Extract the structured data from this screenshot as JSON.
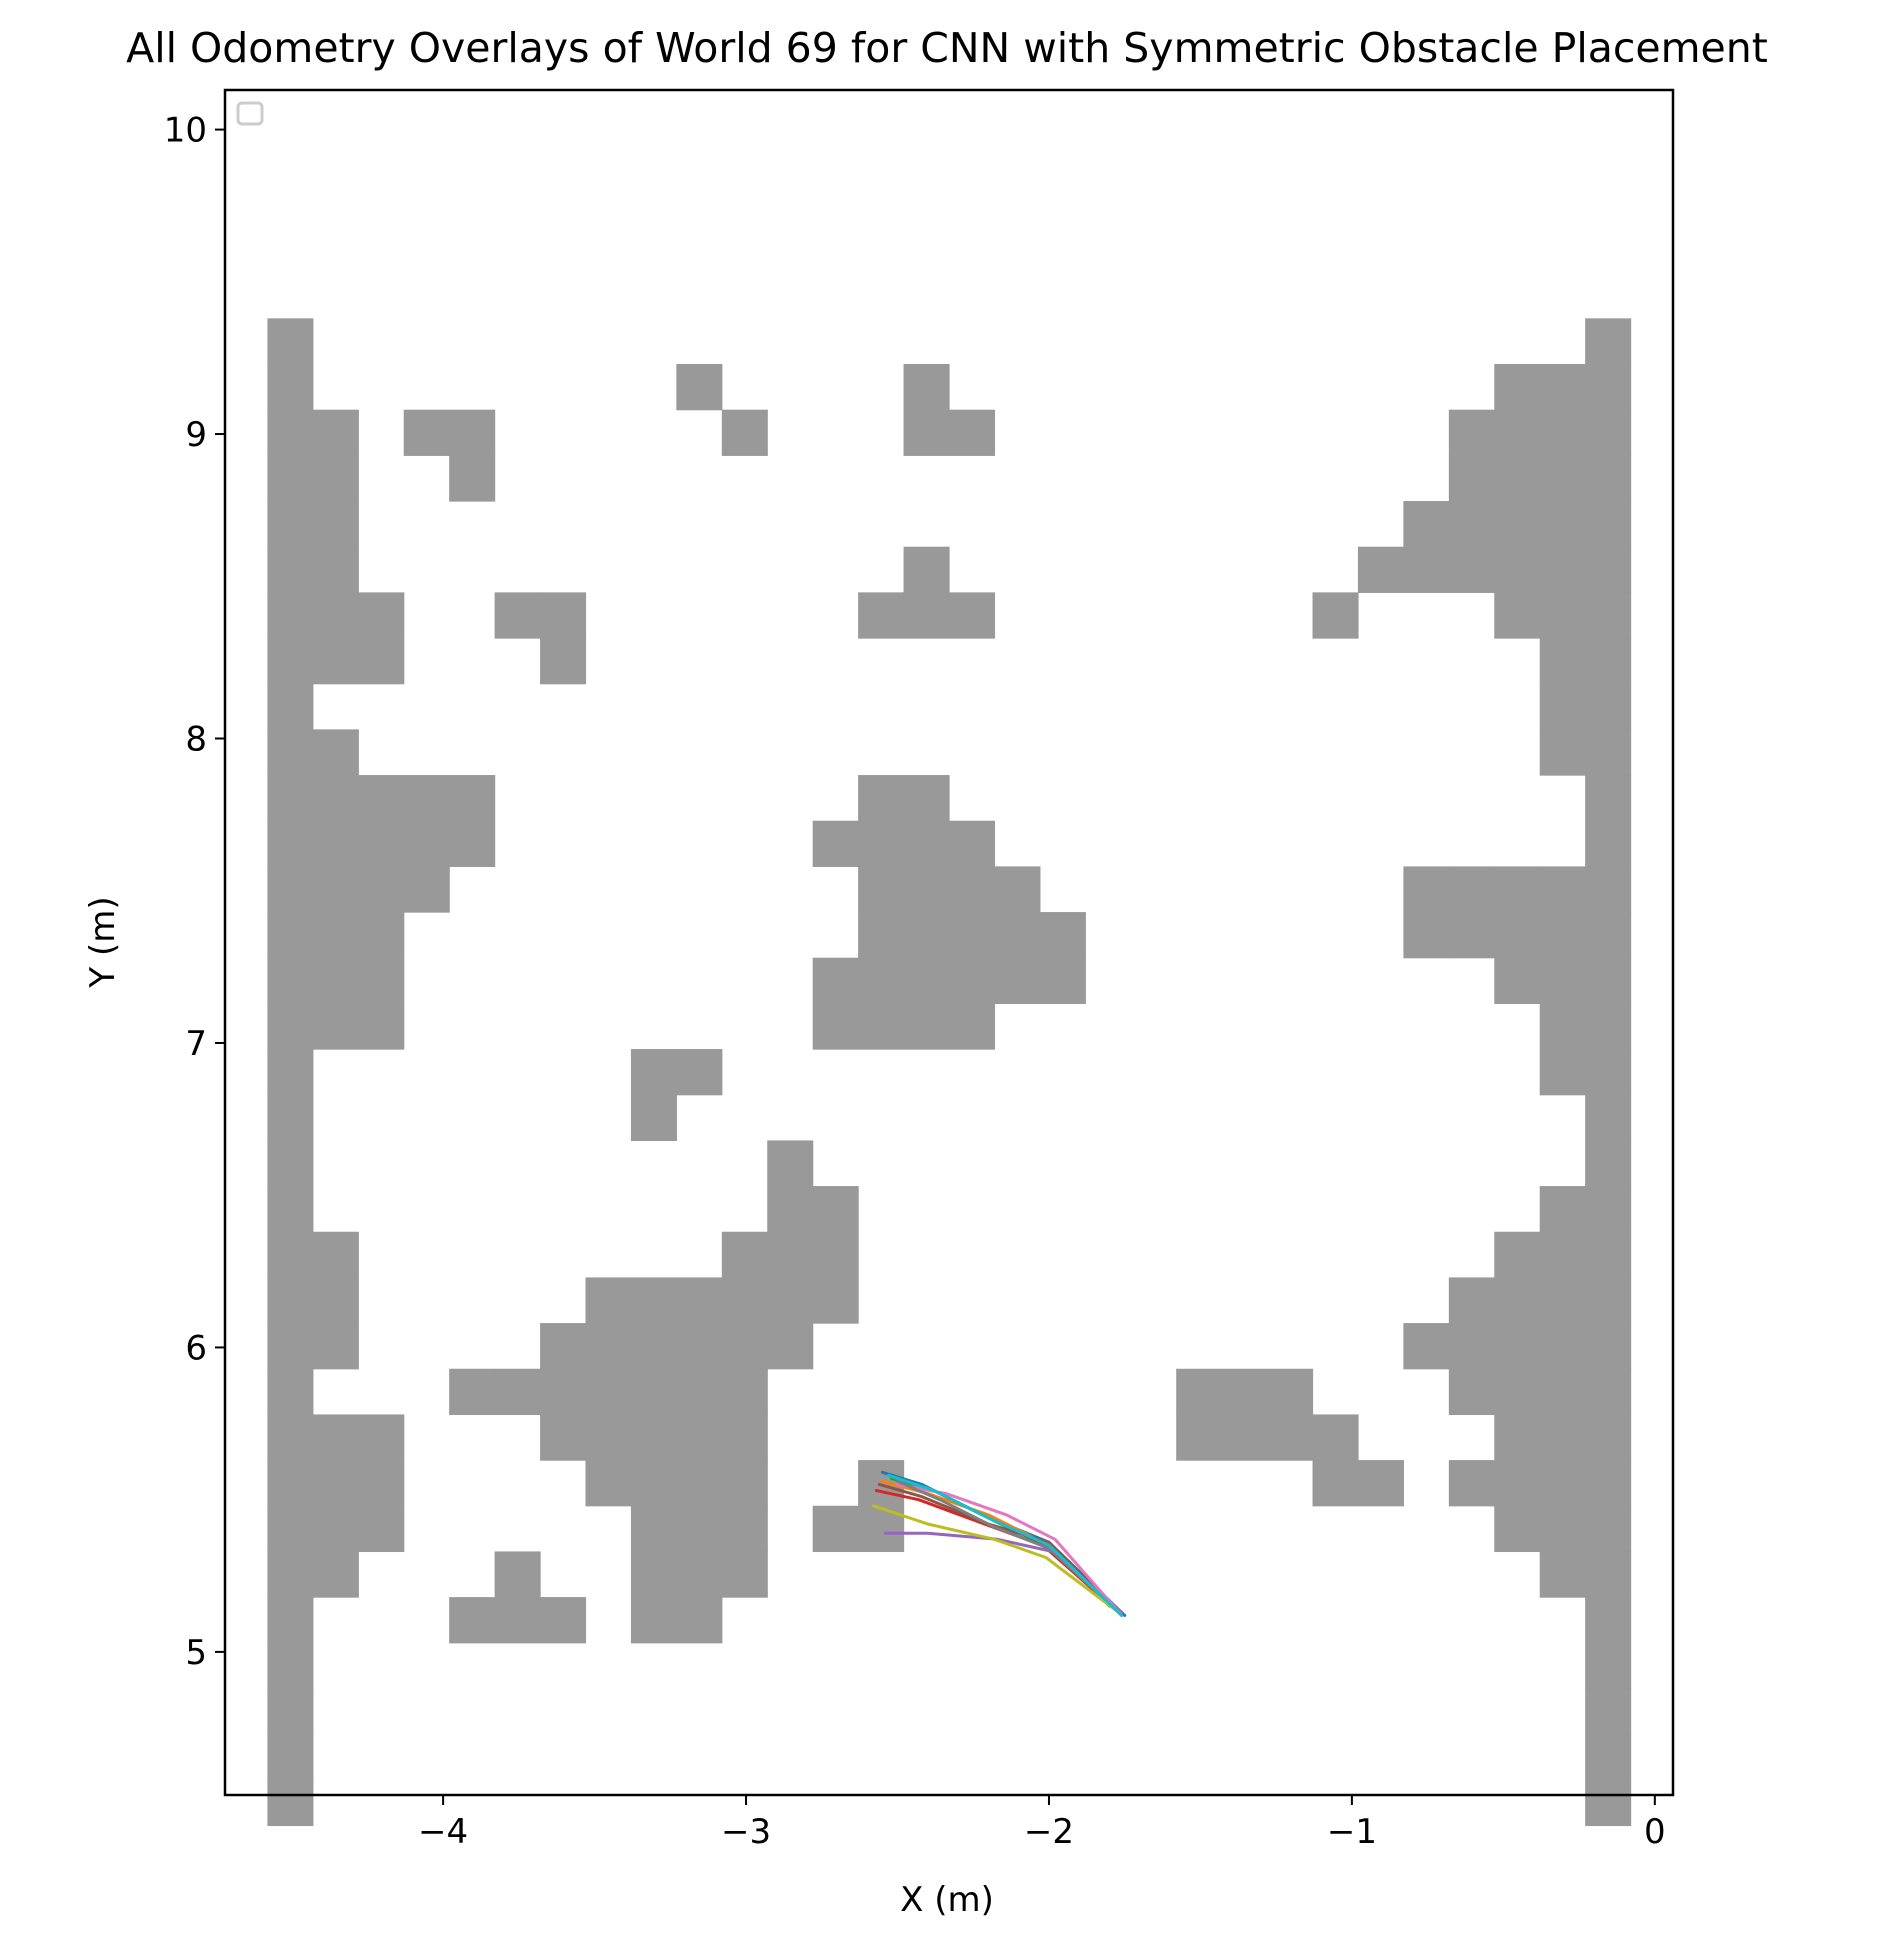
{
  "chart_data": {
    "type": "line",
    "title": "All Odometry Overlays of World 69 for CNN with Symmetric Obstacle Placement",
    "xlabel": "X (m)",
    "ylabel": "Y (m)",
    "xlim": [
      -4.72,
      0.06
    ],
    "ylim": [
      4.53,
      10.13
    ],
    "xticks": [
      -4,
      -3,
      -2,
      -1,
      0
    ],
    "xtick_labels": [
      "−4",
      "−3",
      "−2",
      "−1",
      "0"
    ],
    "yticks": [
      5,
      6,
      7,
      8,
      9,
      10
    ],
    "ytick_labels": [
      "5",
      "6",
      "7",
      "8",
      "9",
      "10"
    ],
    "grid": false,
    "legend": {
      "placement": "top-left",
      "entries": []
    },
    "obstacle_color": "#999999",
    "obstacle_grid": {
      "x0": -4.58,
      "y0": 4.53,
      "cell": 0.15,
      "rows_from_top": [
        {
          "y_top": 9.38,
          "cols": [
            0,
            29
          ]
        },
        {
          "y_top": 9.23,
          "cols": [
            0,
            9,
            14,
            27,
            28,
            29
          ]
        },
        {
          "y_top": 9.08,
          "cols": [
            0,
            1,
            3,
            4,
            10,
            14,
            15,
            26,
            27,
            28,
            29
          ]
        },
        {
          "y_top": 8.93,
          "cols": [
            0,
            1,
            4,
            26,
            27,
            28,
            29
          ]
        },
        {
          "y_top": 8.78,
          "cols": [
            0,
            1,
            25,
            26,
            27,
            28,
            29
          ]
        },
        {
          "y_top": 8.63,
          "cols": [
            0,
            1,
            14,
            24,
            25,
            26,
            27,
            28,
            29
          ]
        },
        {
          "y_top": 8.48,
          "cols": [
            0,
            1,
            2,
            5,
            6,
            13,
            14,
            15,
            23,
            27,
            28,
            29
          ]
        },
        {
          "y_top": 8.33,
          "cols": [
            0,
            1,
            2,
            6,
            28,
            29
          ]
        },
        {
          "y_top": 8.18,
          "cols": [
            0,
            28,
            29
          ]
        },
        {
          "y_top": 8.03,
          "cols": [
            0,
            1,
            28,
            29
          ]
        },
        {
          "y_top": 7.88,
          "cols": [
            0,
            1,
            2,
            3,
            4,
            13,
            14,
            29
          ]
        },
        {
          "y_top": 7.73,
          "cols": [
            0,
            1,
            2,
            3,
            4,
            12,
            13,
            14,
            15,
            29
          ]
        },
        {
          "y_top": 7.58,
          "cols": [
            0,
            1,
            2,
            3,
            13,
            14,
            15,
            16,
            25,
            26,
            27,
            28,
            29
          ]
        },
        {
          "y_top": 7.43,
          "cols": [
            0,
            1,
            2,
            13,
            14,
            15,
            16,
            17,
            25,
            26,
            27,
            28,
            29
          ]
        },
        {
          "y_top": 7.28,
          "cols": [
            0,
            1,
            2,
            12,
            13,
            14,
            15,
            16,
            17,
            27,
            28,
            29
          ]
        },
        {
          "y_top": 7.13,
          "cols": [
            0,
            1,
            2,
            12,
            13,
            14,
            15,
            28,
            29
          ]
        },
        {
          "y_top": 6.98,
          "cols": [
            0,
            8,
            9,
            28,
            29
          ]
        },
        {
          "y_top": 6.83,
          "cols": [
            0,
            8,
            29
          ]
        },
        {
          "y_top": 6.68,
          "cols": [
            0,
            11,
            29
          ]
        },
        {
          "y_top": 6.53,
          "cols": [
            0,
            11,
            12,
            28,
            29
          ]
        },
        {
          "y_top": 6.38,
          "cols": [
            0,
            1,
            10,
            11,
            12,
            27,
            28,
            29
          ]
        },
        {
          "y_top": 6.23,
          "cols": [
            0,
            1,
            7,
            8,
            9,
            10,
            11,
            12,
            26,
            27,
            28,
            29
          ]
        },
        {
          "y_top": 6.08,
          "cols": [
            0,
            1,
            6,
            7,
            8,
            9,
            10,
            11,
            25,
            26,
            27,
            28,
            29
          ]
        },
        {
          "y_top": 5.93,
          "cols": [
            0,
            4,
            5,
            6,
            7,
            8,
            9,
            10,
            20,
            21,
            22,
            26,
            27,
            28,
            29
          ]
        },
        {
          "y_top": 5.78,
          "cols": [
            0,
            1,
            2,
            6,
            7,
            8,
            9,
            10,
            20,
            21,
            22,
            23,
            27,
            28,
            29
          ]
        },
        {
          "y_top": 5.63,
          "cols": [
            0,
            1,
            2,
            7,
            8,
            9,
            10,
            13,
            23,
            24,
            26,
            27,
            28,
            29
          ]
        },
        {
          "y_top": 5.48,
          "cols": [
            0,
            1,
            2,
            8,
            9,
            10,
            12,
            13,
            27,
            28,
            29
          ]
        },
        {
          "y_top": 5.33,
          "cols": [
            0,
            1,
            5,
            8,
            9,
            10,
            28,
            29
          ]
        },
        {
          "y_top": 5.18,
          "cols": [
            0,
            4,
            5,
            6,
            8,
            9,
            29
          ]
        },
        {
          "y_top": 5.03,
          "cols": [
            0,
            29
          ]
        },
        {
          "y_top": 4.88,
          "cols": [
            0,
            29
          ]
        },
        {
          "y_top": 4.73,
          "cols": [
            0,
            29
          ]
        },
        {
          "y_top": 4.58,
          "cols": [
            0,
            29
          ]
        }
      ]
    },
    "series": [
      {
        "color": "#1f77b4",
        "x": [
          -2.55,
          -2.42,
          -2.22,
          -2.0,
          -1.75
        ],
        "y": [
          5.59,
          5.55,
          5.45,
          5.36,
          5.12
        ]
      },
      {
        "color": "#ff7f0e",
        "x": [
          -2.55,
          -2.4,
          -2.2,
          -2.0,
          -1.77
        ],
        "y": [
          5.56,
          5.52,
          5.45,
          5.35,
          5.13
        ]
      },
      {
        "color": "#2ca02c",
        "x": [
          -2.52,
          -2.38,
          -2.18,
          -1.99,
          -1.8
        ],
        "y": [
          5.57,
          5.53,
          5.43,
          5.34,
          5.15
        ]
      },
      {
        "color": "#d62728",
        "x": [
          -2.57,
          -2.43,
          -2.24,
          -2.02,
          -1.77
        ],
        "y": [
          5.53,
          5.5,
          5.43,
          5.35,
          5.13
        ]
      },
      {
        "color": "#9467bd",
        "x": [
          -2.54,
          -2.4,
          -2.17,
          -1.99,
          -1.76
        ],
        "y": [
          5.39,
          5.39,
          5.37,
          5.33,
          5.13
        ]
      },
      {
        "color": "#8c564b",
        "x": [
          -2.56,
          -2.42,
          -2.2,
          -2.0,
          -1.76
        ],
        "y": [
          5.55,
          5.51,
          5.42,
          5.36,
          5.12
        ]
      },
      {
        "color": "#e377c2",
        "x": [
          -2.5,
          -2.34,
          -2.14,
          -1.98,
          -1.76
        ],
        "y": [
          5.55,
          5.52,
          5.45,
          5.37,
          5.12
        ]
      },
      {
        "color": "#7f7f7f",
        "x": [
          -2.5,
          -2.36,
          -2.18,
          -2.0,
          -1.78
        ],
        "y": [
          5.56,
          5.5,
          5.41,
          5.34,
          5.14
        ]
      },
      {
        "color": "#bcbd22",
        "x": [
          -2.58,
          -2.4,
          -2.18,
          -2.01,
          -1.77
        ],
        "y": [
          5.48,
          5.42,
          5.37,
          5.31,
          5.13
        ]
      },
      {
        "color": "#17becf",
        "x": [
          -2.53,
          -2.38,
          -2.2,
          -2.0,
          -1.76
        ],
        "y": [
          5.58,
          5.53,
          5.44,
          5.35,
          5.12
        ]
      }
    ]
  }
}
